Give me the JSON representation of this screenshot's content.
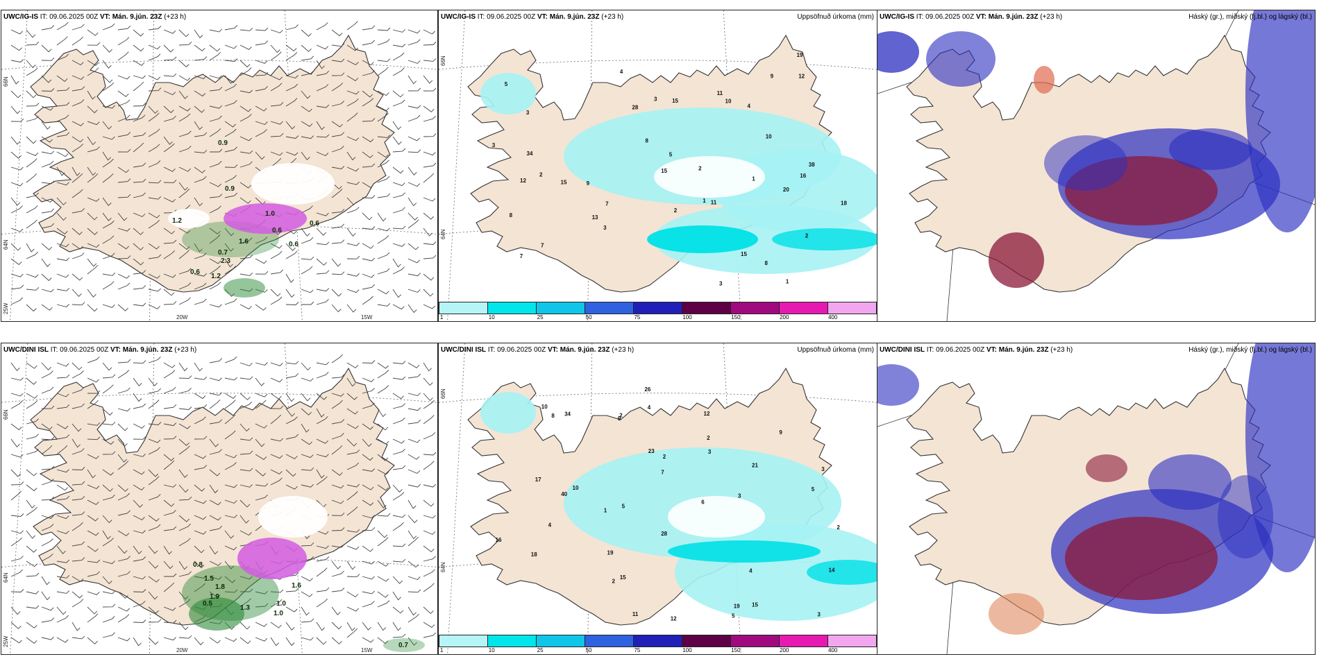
{
  "rows": [
    {
      "model": "UWC/IG-IS",
      "it_label": "IT:",
      "it_value": "09.06.2025 00Z",
      "vt_label": "VT: Mán. 9.jún. 23Z",
      "lead": "(+23 h)"
    },
    {
      "model": "UWC/DINI ISL",
      "it_label": "IT:",
      "it_value": "09.06.2025 00Z",
      "vt_label": "VT: Mán. 9.jún. 23Z",
      "lead": "(+23 h)"
    }
  ],
  "precip_title": "Uppsöfnuð úrkoma (mm)",
  "cloud_title": "Háský (gr.), miðský (fj.bl.) og lágský (bl.)",
  "lat_labels": [
    "66N",
    "64N",
    "25W"
  ],
  "lon_labels": [
    "20W",
    "15W"
  ],
  "colorbar": {
    "ticks": [
      "1",
      "10",
      "25",
      "50",
      "75",
      "100",
      "150",
      "200",
      "400"
    ],
    "colors": [
      "#b5f5f7",
      "#00e6ea",
      "#10c6e8",
      "#2f62e0",
      "#2020b8",
      "#5e0045",
      "#a00a7e",
      "#e61ab0",
      "#f2a6ef"
    ]
  },
  "colors": {
    "land": "#f4e4d4",
    "precip_light": "#a6f2f4",
    "precip_mid": "#00e0e6",
    "high_cloud": "#8b1a3a",
    "mid_cloud": "#2b2fc0",
    "low_cloud": "#5a8ff0",
    "snow_magenta": "#d25ce0",
    "green_precip": "#2e8b3a"
  },
  "labels_wind_top": [
    "0.9",
    "0.9",
    "1.2",
    "1.0",
    "0.7",
    "1.6",
    "0.6",
    "1.2",
    "2.3",
    "0.6",
    "0.6",
    "0.6"
  ],
  "labels_wind_bottom": [
    "1.5",
    "1.0",
    "0.8",
    "1.9",
    "1.8",
    "1.3",
    "1.0",
    "0.7",
    "0.5",
    "1.6"
  ],
  "labels_precip_top": [
    "1",
    "2",
    "1",
    "5",
    "2",
    "3",
    "7",
    "9",
    "4",
    "3",
    "10",
    "8",
    "3",
    "4",
    "2",
    "8",
    "1",
    "5",
    "3",
    "7",
    "19",
    "15",
    "10",
    "18",
    "38",
    "34",
    "15",
    "15",
    "8",
    "12",
    "11",
    "12",
    "13",
    "11",
    "28",
    "20",
    "16",
    "15",
    "9",
    "3",
    "7",
    "2"
  ],
  "labels_precip_bottom": [
    "2",
    "2",
    "5",
    "3",
    "1",
    "3",
    "2",
    "5",
    "7",
    "4",
    "2",
    "6",
    "3",
    "4",
    "9",
    "12",
    "17",
    "18",
    "16",
    "15",
    "40",
    "34",
    "28",
    "14",
    "12",
    "9",
    "5",
    "10",
    "19",
    "21",
    "15",
    "26",
    "23",
    "19",
    "11",
    "10",
    "2",
    "3",
    "8",
    "4"
  ]
}
